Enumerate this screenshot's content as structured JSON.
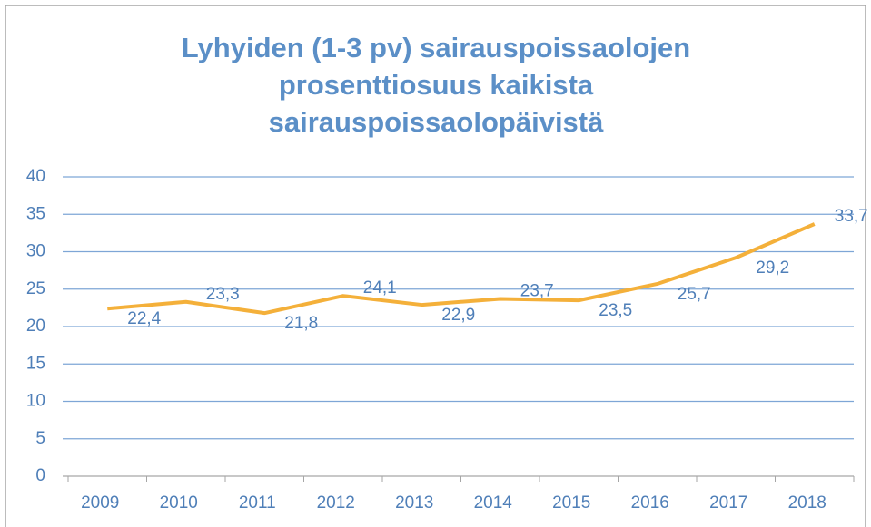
{
  "chart_data": {
    "type": "line",
    "title": "Lyhyiden (1-3 pv) sairauspoissaolojen prosenttiosuus kaikista sairauspoissaolopäivistä",
    "categories": [
      "2009",
      "2010",
      "2011",
      "2012",
      "2013",
      "2014",
      "2015",
      "2016",
      "2017",
      "2018"
    ],
    "series": [
      {
        "color": "#f4b03a",
        "values": [
          22.4,
          23.3,
          21.8,
          24.1,
          22.9,
          23.7,
          23.5,
          25.7,
          29.2,
          33.7
        ],
        "value_labels": [
          "22,4",
          "23,3",
          "21,8",
          "24,1",
          "22,9",
          "23,7",
          "23,5",
          "25,7",
          "29,2",
          "33,7"
        ]
      }
    ],
    "ylim": [
      0,
      40
    ],
    "yticks": [
      0,
      5,
      10,
      15,
      20,
      25,
      30,
      35,
      40
    ],
    "grid": true
  }
}
